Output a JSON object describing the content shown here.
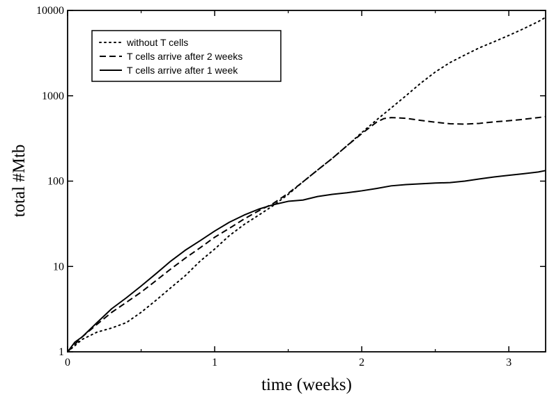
{
  "chart_data": {
    "type": "line",
    "xlabel": "time (weeks)",
    "ylabel": "total #Mtb",
    "xlim": [
      0,
      3.25
    ],
    "ylim": [
      1,
      10000
    ],
    "yscale": "log",
    "grid": false,
    "legend_position": "top-left",
    "x_ticks": [
      0,
      1,
      2,
      3
    ],
    "x_tick_labels": [
      "0",
      "1",
      "2",
      "3"
    ],
    "y_ticks": [
      1,
      10,
      100,
      1000,
      10000
    ],
    "y_tick_labels": [
      "1",
      "10",
      "100",
      "1000",
      "10000"
    ],
    "series": [
      {
        "name": "without T cells",
        "dash": "dotted",
        "points": [
          [
            0,
            1.0
          ],
          [
            0.1,
            1.4
          ],
          [
            0.2,
            1.7
          ],
          [
            0.3,
            1.9
          ],
          [
            0.4,
            2.2
          ],
          [
            0.5,
            2.9
          ],
          [
            0.6,
            4.0
          ],
          [
            0.7,
            5.6
          ],
          [
            0.8,
            7.8
          ],
          [
            0.9,
            11.5
          ],
          [
            1.0,
            16
          ],
          [
            1.1,
            23
          ],
          [
            1.2,
            31
          ],
          [
            1.3,
            40
          ],
          [
            1.4,
            52
          ],
          [
            1.5,
            70
          ],
          [
            1.6,
            98
          ],
          [
            1.7,
            135
          ],
          [
            1.8,
            185
          ],
          [
            1.9,
            260
          ],
          [
            2.0,
            370
          ],
          [
            2.1,
            520
          ],
          [
            2.2,
            720
          ],
          [
            2.3,
            1000
          ],
          [
            2.4,
            1400
          ],
          [
            2.5,
            1900
          ],
          [
            2.6,
            2450
          ],
          [
            2.7,
            3000
          ],
          [
            2.8,
            3650
          ],
          [
            2.9,
            4300
          ],
          [
            3.0,
            5100
          ],
          [
            3.1,
            6100
          ],
          [
            3.2,
            7400
          ],
          [
            3.25,
            8300
          ]
        ]
      },
      {
        "name": "T cells arrive after 2 weeks",
        "dash": "dashed",
        "points": [
          [
            0,
            1.0
          ],
          [
            0.1,
            1.5
          ],
          [
            0.2,
            2.1
          ],
          [
            0.3,
            2.9
          ],
          [
            0.4,
            3.8
          ],
          [
            0.5,
            5.0
          ],
          [
            0.6,
            6.8
          ],
          [
            0.7,
            9.3
          ],
          [
            0.8,
            12.5
          ],
          [
            0.9,
            16.5
          ],
          [
            1.0,
            22
          ],
          [
            1.1,
            28
          ],
          [
            1.2,
            36
          ],
          [
            1.3,
            45
          ],
          [
            1.4,
            55
          ],
          [
            1.5,
            72
          ],
          [
            1.6,
            98
          ],
          [
            1.7,
            135
          ],
          [
            1.8,
            185
          ],
          [
            1.9,
            260
          ],
          [
            2.0,
            360
          ],
          [
            2.1,
            490
          ],
          [
            2.15,
            540
          ],
          [
            2.2,
            555
          ],
          [
            2.3,
            545
          ],
          [
            2.4,
            515
          ],
          [
            2.5,
            490
          ],
          [
            2.6,
            470
          ],
          [
            2.7,
            465
          ],
          [
            2.8,
            475
          ],
          [
            2.9,
            495
          ],
          [
            3.0,
            510
          ],
          [
            3.1,
            530
          ],
          [
            3.2,
            555
          ],
          [
            3.25,
            570
          ]
        ]
      },
      {
        "name": "T cells arrive after 1 week",
        "dash": "solid",
        "points": [
          [
            0,
            1.0
          ],
          [
            0.05,
            1.3
          ],
          [
            0.1,
            1.5
          ],
          [
            0.2,
            2.2
          ],
          [
            0.3,
            3.2
          ],
          [
            0.4,
            4.3
          ],
          [
            0.5,
            5.9
          ],
          [
            0.6,
            8.2
          ],
          [
            0.7,
            11.5
          ],
          [
            0.8,
            15.5
          ],
          [
            0.9,
            20
          ],
          [
            1.0,
            26
          ],
          [
            1.1,
            33
          ],
          [
            1.2,
            40
          ],
          [
            1.3,
            47
          ],
          [
            1.4,
            53
          ],
          [
            1.5,
            58
          ],
          [
            1.6,
            60
          ],
          [
            1.7,
            66
          ],
          [
            1.8,
            70
          ],
          [
            1.9,
            73
          ],
          [
            2.0,
            77
          ],
          [
            2.1,
            82
          ],
          [
            2.2,
            88
          ],
          [
            2.3,
            91
          ],
          [
            2.4,
            93
          ],
          [
            2.5,
            95
          ],
          [
            2.6,
            96
          ],
          [
            2.7,
            100
          ],
          [
            2.8,
            106
          ],
          [
            2.9,
            112
          ],
          [
            3.0,
            117
          ],
          [
            3.1,
            122
          ],
          [
            3.2,
            128
          ],
          [
            3.25,
            133
          ]
        ]
      }
    ]
  }
}
